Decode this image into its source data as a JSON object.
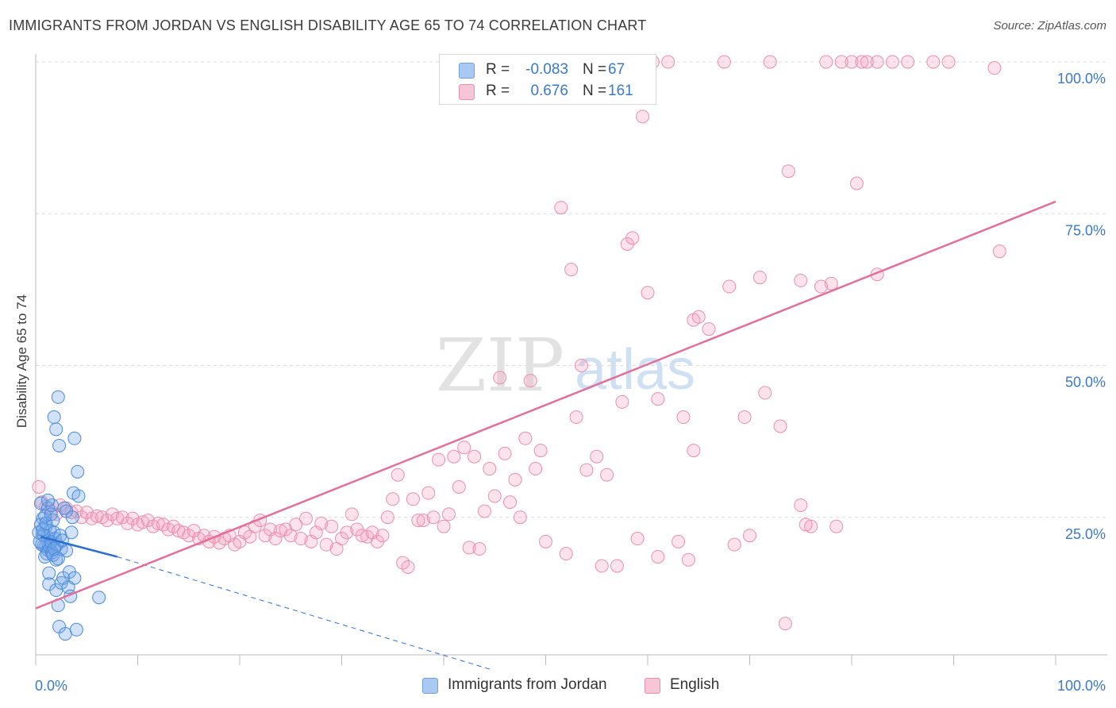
{
  "title": "IMMIGRANTS FROM JORDAN VS ENGLISH DISABILITY AGE 65 TO 74 CORRELATION CHART",
  "source": "Source: ZipAtlas.com",
  "watermark": {
    "zip": "ZIP",
    "atlas": "atlas"
  },
  "legend": {
    "rows": [
      {
        "r_label": "R =",
        "r_value": "-0.083",
        "n_label": "N =",
        "n_value": "67",
        "color": "#a9c9f2"
      },
      {
        "r_label": "R =",
        "r_value": "0.676",
        "n_label": "N =",
        "n_value": "161",
        "color": "#f7b8cb"
      }
    ]
  },
  "bottom_legend": [
    {
      "label": "Immigrants from Jordan",
      "color": "#a9c9f2"
    },
    {
      "label": "English",
      "color": "#f7b8cb"
    }
  ],
  "colors": {
    "blue_fill": "rgba(120,170,235,0.35)",
    "blue_stroke": "#4a8ad8",
    "blue_line": "#2a6fd0",
    "pink_fill": "rgba(245,160,190,0.30)",
    "pink_stroke": "#ea8fad",
    "pink_line": "#e36f9a",
    "tick_text": "#3b78c8",
    "grid": "#dcdcdc"
  },
  "chart_data": {
    "type": "scatter",
    "title": "IMMIGRANTS FROM JORDAN VS ENGLISH DISABILITY AGE 65 TO 74 CORRELATION CHART",
    "xlabel": "",
    "ylabel": "Disability Age 65 to 74",
    "xlim": [
      0,
      100
    ],
    "ylim": [
      0,
      102
    ],
    "x_tick_labels": [
      "0.0%",
      "100.0%"
    ],
    "y_ticks": [
      25,
      50,
      75,
      100
    ],
    "y_tick_labels": [
      "25.0%",
      "50.0%",
      "75.0%",
      "100.0%"
    ],
    "grid": true,
    "series": [
      {
        "name": "Immigrants from Jordan",
        "points": [
          [
            0.5,
            27.3
          ],
          [
            0.7,
            24.8
          ],
          [
            0.7,
            22.2
          ],
          [
            0.8,
            20.3
          ],
          [
            0.9,
            18.5
          ],
          [
            1.0,
            23.5
          ],
          [
            1.1,
            21.8
          ],
          [
            1.2,
            19.6
          ],
          [
            1.2,
            26.5
          ],
          [
            1.3,
            15.8
          ],
          [
            1.3,
            14.0
          ],
          [
            1.4,
            20.8
          ],
          [
            1.5,
            19.5
          ],
          [
            1.6,
            27.0
          ],
          [
            1.7,
            24.5
          ],
          [
            1.8,
            22.5
          ],
          [
            1.8,
            41.5
          ],
          [
            1.9,
            20.0
          ],
          [
            2.0,
            39.5
          ],
          [
            2.0,
            18.0
          ],
          [
            2.0,
            13.0
          ],
          [
            2.2,
            44.8
          ],
          [
            2.2,
            10.5
          ],
          [
            2.3,
            7.0
          ],
          [
            2.3,
            36.8
          ],
          [
            2.5,
            14.2
          ],
          [
            2.5,
            19.8
          ],
          [
            2.7,
            15.0
          ],
          [
            2.8,
            26.5
          ],
          [
            2.9,
            5.8
          ],
          [
            3.0,
            19.5
          ],
          [
            3.0,
            26.0
          ],
          [
            3.2,
            13.5
          ],
          [
            3.3,
            16.0
          ],
          [
            3.4,
            12.0
          ],
          [
            3.5,
            22.5
          ],
          [
            3.6,
            25.0
          ],
          [
            3.7,
            29.0
          ],
          [
            3.8,
            15.0
          ],
          [
            3.8,
            38.0
          ],
          [
            4.0,
            6.5
          ],
          [
            4.1,
            32.5
          ],
          [
            4.2,
            28.5
          ],
          [
            6.2,
            11.8
          ],
          [
            0.6,
            20.5
          ],
          [
            0.8,
            22.0
          ],
          [
            1.0,
            20.2
          ],
          [
            1.1,
            19.0
          ],
          [
            1.3,
            20.3
          ],
          [
            1.4,
            22.8
          ],
          [
            1.5,
            21.0
          ],
          [
            1.6,
            19.2
          ],
          [
            1.7,
            18.8
          ],
          [
            1.9,
            21.5
          ],
          [
            0.4,
            21.0
          ],
          [
            0.5,
            23.8
          ],
          [
            0.9,
            25.2
          ],
          [
            1.2,
            27.8
          ],
          [
            2.1,
            20.5
          ],
          [
            2.4,
            22.0
          ],
          [
            2.6,
            21.2
          ],
          [
            0.3,
            22.5
          ],
          [
            0.7,
            23.0
          ],
          [
            1.0,
            24.0
          ],
          [
            1.8,
            19.8
          ],
          [
            2.2,
            18.2
          ],
          [
            1.5,
            25.5
          ]
        ]
      },
      {
        "name": "English",
        "points": [
          [
            0.3,
            30.0
          ],
          [
            0.6,
            27.5
          ],
          [
            1.0,
            26.8
          ],
          [
            1.5,
            26.0
          ],
          [
            2.0,
            25.5
          ],
          [
            2.4,
            27.0
          ],
          [
            3.0,
            26.5
          ],
          [
            3.5,
            25.8
          ],
          [
            4.0,
            26.0
          ],
          [
            4.5,
            25.0
          ],
          [
            5.0,
            25.8
          ],
          [
            5.5,
            24.8
          ],
          [
            6.0,
            25.2
          ],
          [
            6.5,
            25.0
          ],
          [
            7.0,
            24.5
          ],
          [
            7.5,
            25.5
          ],
          [
            8.0,
            24.8
          ],
          [
            8.5,
            25.0
          ],
          [
            9.0,
            24.0
          ],
          [
            9.5,
            24.8
          ],
          [
            10.0,
            23.8
          ],
          [
            10.5,
            24.2
          ],
          [
            11.0,
            24.5
          ],
          [
            11.5,
            23.5
          ],
          [
            12.0,
            24.0
          ],
          [
            12.5,
            23.8
          ],
          [
            13.0,
            23.0
          ],
          [
            13.5,
            23.5
          ],
          [
            14.0,
            22.8
          ],
          [
            14.5,
            22.5
          ],
          [
            15.0,
            22.0
          ],
          [
            15.5,
            22.8
          ],
          [
            16.0,
            21.5
          ],
          [
            16.5,
            22.0
          ],
          [
            17.0,
            21.0
          ],
          [
            17.5,
            21.8
          ],
          [
            18.0,
            20.8
          ],
          [
            18.5,
            21.5
          ],
          [
            19.0,
            22.0
          ],
          [
            19.5,
            20.5
          ],
          [
            20.0,
            21.0
          ],
          [
            20.5,
            22.5
          ],
          [
            21.0,
            21.8
          ],
          [
            21.5,
            23.5
          ],
          [
            22.0,
            24.5
          ],
          [
            22.5,
            22.0
          ],
          [
            23.0,
            23.0
          ],
          [
            23.5,
            21.5
          ],
          [
            24.0,
            22.8
          ],
          [
            24.5,
            23.0
          ],
          [
            25.0,
            22.0
          ],
          [
            25.5,
            23.8
          ],
          [
            26.0,
            21.5
          ],
          [
            26.5,
            24.8
          ],
          [
            27.0,
            21.0
          ],
          [
            27.5,
            22.5
          ],
          [
            28.0,
            24.0
          ],
          [
            28.5,
            20.5
          ],
          [
            29.0,
            23.5
          ],
          [
            29.5,
            19.8
          ],
          [
            30.0,
            21.5
          ],
          [
            30.5,
            22.5
          ],
          [
            31.0,
            25.5
          ],
          [
            31.5,
            23.0
          ],
          [
            32.0,
            22.0
          ],
          [
            32.5,
            21.8
          ],
          [
            33.0,
            22.5
          ],
          [
            33.5,
            21.0
          ],
          [
            34.0,
            22.0
          ],
          [
            34.5,
            25.0
          ],
          [
            35.0,
            28.0
          ],
          [
            35.5,
            32.0
          ],
          [
            36.0,
            17.5
          ],
          [
            36.5,
            16.8
          ],
          [
            37.0,
            28.0
          ],
          [
            37.5,
            24.5
          ],
          [
            38.0,
            24.5
          ],
          [
            38.5,
            29.0
          ],
          [
            39.0,
            25.0
          ],
          [
            39.5,
            34.5
          ],
          [
            40.0,
            23.5
          ],
          [
            40.5,
            25.5
          ],
          [
            41.0,
            35.0
          ],
          [
            41.5,
            30.0
          ],
          [
            42.0,
            36.5
          ],
          [
            42.5,
            20.0
          ],
          [
            43.0,
            35.0
          ],
          [
            43.5,
            19.8
          ],
          [
            44.0,
            26.0
          ],
          [
            44.5,
            33.0
          ],
          [
            45.0,
            28.5
          ],
          [
            45.5,
            48.0
          ],
          [
            46.0,
            35.5
          ],
          [
            46.5,
            27.5
          ],
          [
            47.0,
            31.2
          ],
          [
            47.5,
            25.0
          ],
          [
            48.0,
            38.0
          ],
          [
            48.5,
            47.5
          ],
          [
            49.0,
            33.0
          ],
          [
            49.5,
            36.0
          ],
          [
            50.0,
            21.0
          ],
          [
            50.5,
            100.0
          ],
          [
            51.5,
            76.0
          ],
          [
            52.0,
            19.0
          ],
          [
            52.5,
            65.8
          ],
          [
            53.0,
            41.5
          ],
          [
            53.5,
            50.0
          ],
          [
            54.0,
            32.8
          ],
          [
            55.0,
            35.0
          ],
          [
            55.5,
            17.0
          ],
          [
            56.0,
            32.0
          ],
          [
            57.0,
            17.0
          ],
          [
            57.5,
            44.0
          ],
          [
            58.0,
            70.0
          ],
          [
            58.5,
            71.0
          ],
          [
            59.0,
            21.5
          ],
          [
            59.5,
            91.0
          ],
          [
            60.0,
            62.0
          ],
          [
            60.5,
            100.0
          ],
          [
            61.0,
            18.5
          ],
          [
            61.0,
            44.5
          ],
          [
            62.0,
            100.0
          ],
          [
            63.0,
            21.0
          ],
          [
            63.5,
            41.5
          ],
          [
            64.0,
            18.0
          ],
          [
            64.5,
            36.0
          ],
          [
            64.5,
            57.5
          ],
          [
            65.0,
            58.0
          ],
          [
            66.0,
            56.0
          ],
          [
            67.5,
            100.0
          ],
          [
            68.0,
            63.0
          ],
          [
            68.5,
            20.5
          ],
          [
            69.5,
            41.5
          ],
          [
            70.0,
            22.0
          ],
          [
            71.0,
            64.5
          ],
          [
            71.5,
            45.5
          ],
          [
            72.0,
            100.0
          ],
          [
            73.0,
            40.0
          ],
          [
            73.5,
            7.5
          ],
          [
            73.8,
            82.0
          ],
          [
            75.0,
            27.0
          ],
          [
            75.0,
            64.0
          ],
          [
            76.0,
            23.5
          ],
          [
            77.5,
            100.0
          ],
          [
            78.0,
            63.5
          ],
          [
            78.5,
            23.5
          ],
          [
            80.0,
            100.0
          ],
          [
            80.5,
            80.0
          ],
          [
            81.0,
            100.0
          ],
          [
            82.5,
            65.0
          ],
          [
            82.5,
            100.0
          ],
          [
            84.0,
            100.0
          ],
          [
            85.5,
            100.0
          ],
          [
            88.0,
            100.0
          ],
          [
            89.5,
            100.0
          ],
          [
            94.0,
            99.0
          ],
          [
            94.5,
            68.8
          ],
          [
            75.5,
            23.8
          ],
          [
            77.0,
            63.0
          ],
          [
            79.0,
            100.0
          ],
          [
            81.5,
            100.0
          ]
        ]
      }
    ],
    "trend_lines": [
      {
        "series": "Immigrants from Jordan",
        "x": [
          0.5,
          8.0
        ],
        "y": [
          21.8,
          18.5
        ],
        "extended_x": [
          8.0,
          44.5
        ],
        "extended_y": [
          18.5,
          0.0
        ]
      },
      {
        "series": "English",
        "x": [
          0.0,
          100.0
        ],
        "y": [
          10.0,
          77.0
        ]
      }
    ]
  }
}
